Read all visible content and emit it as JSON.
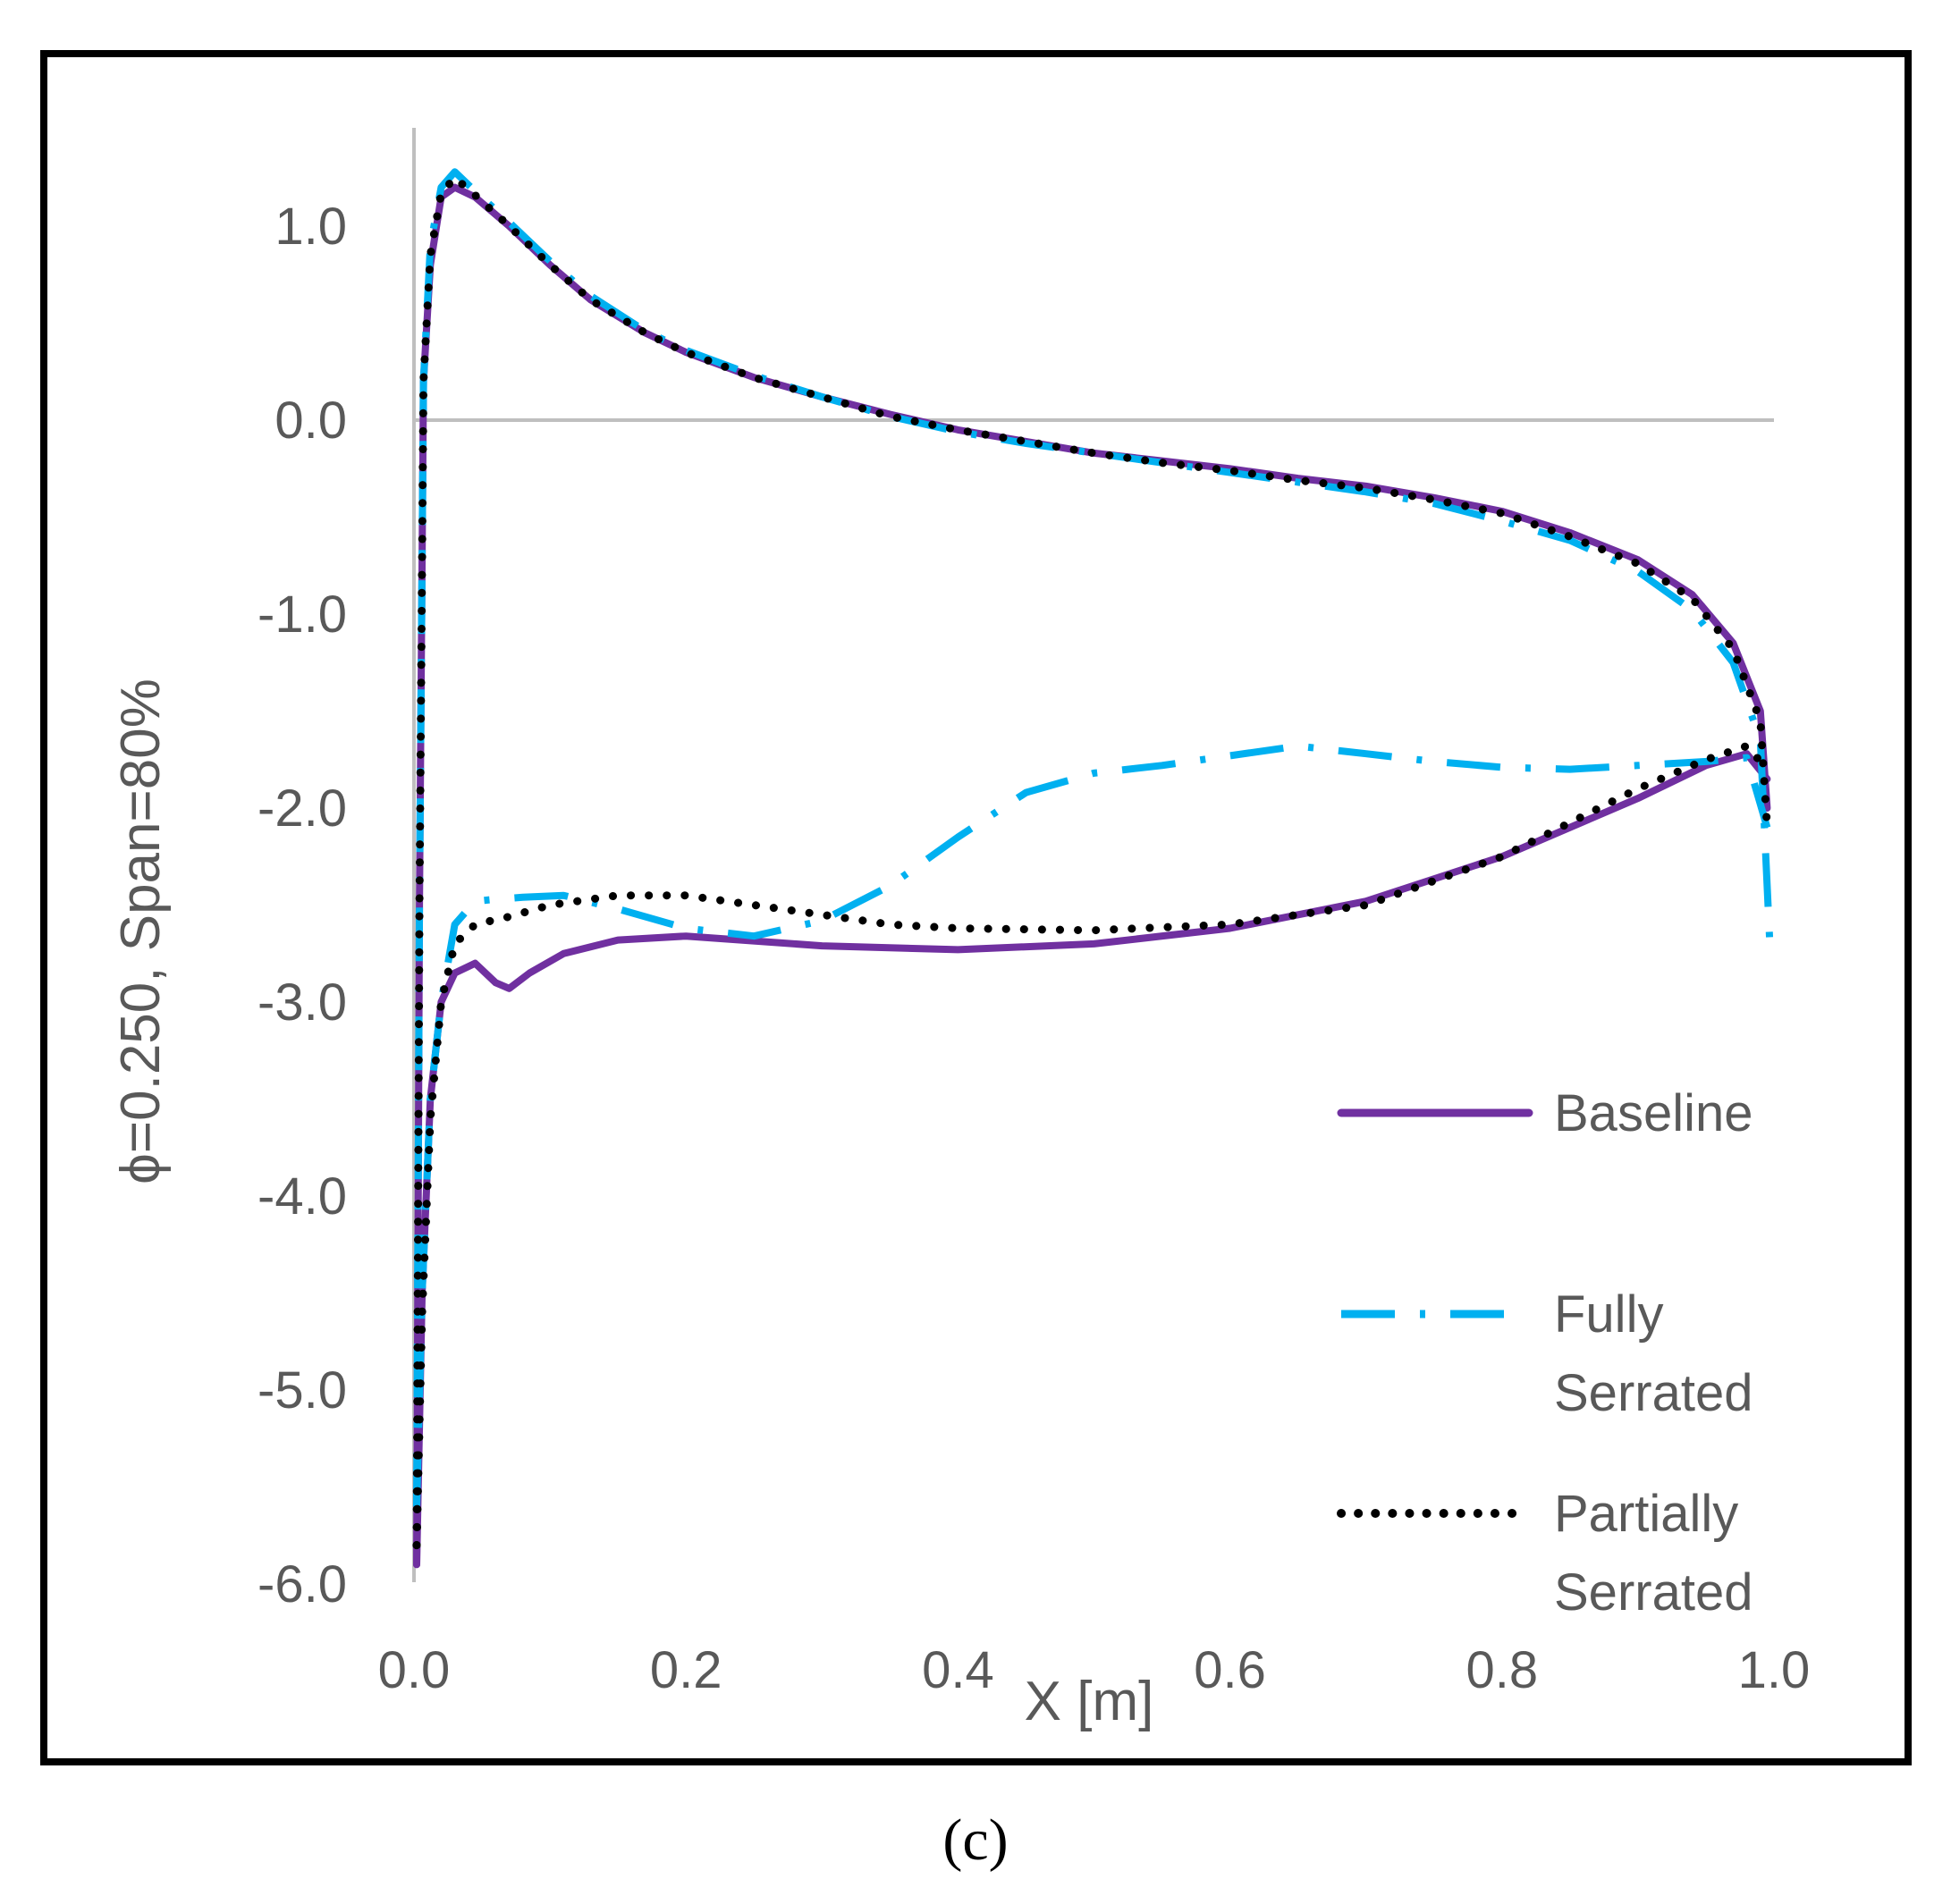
{
  "caption": "(c)",
  "chart_data": {
    "type": "line",
    "xlabel": "X [m]",
    "ylabel": "ϕ=0.250, Span=80%",
    "xlim": [
      0.0,
      1.0
    ],
    "ylim": [
      -6.0,
      1.5
    ],
    "x_ticks": [
      0.0,
      0.2,
      0.4,
      0.6,
      0.8,
      1.0
    ],
    "x_tick_labels": [
      "0.0",
      "0.2",
      "0.4",
      "0.6",
      "0.8",
      "1.0"
    ],
    "y_ticks": [
      1.0,
      0.0,
      -1.0,
      -2.0,
      -3.0,
      -4.0,
      -5.0,
      -6.0
    ],
    "y_tick_labels": [
      "1.0",
      "0.0",
      "-1.0",
      "-2.0",
      "-3.0",
      "-4.0",
      "-5.0",
      "-6.0"
    ],
    "grid": false,
    "legend_position": "lower-right",
    "series": [
      {
        "name": "Baseline",
        "legend_lines": [
          "Baseline"
        ],
        "color": "#7030A0",
        "style": "solid",
        "upper": [
          [
            0.002,
            -5.9
          ],
          [
            0.004,
            -2.5
          ],
          [
            0.007,
            0.2
          ],
          [
            0.012,
            0.8
          ],
          [
            0.02,
            1.15
          ],
          [
            0.03,
            1.2
          ],
          [
            0.045,
            1.15
          ],
          [
            0.07,
            1.0
          ],
          [
            0.1,
            0.8
          ],
          [
            0.13,
            0.62
          ],
          [
            0.17,
            0.45
          ],
          [
            0.2,
            0.35
          ],
          [
            0.25,
            0.22
          ],
          [
            0.3,
            0.12
          ],
          [
            0.35,
            0.03
          ],
          [
            0.4,
            -0.05
          ],
          [
            0.45,
            -0.11
          ],
          [
            0.5,
            -0.17
          ],
          [
            0.55,
            -0.21
          ],
          [
            0.6,
            -0.25
          ],
          [
            0.65,
            -0.3
          ],
          [
            0.7,
            -0.34
          ],
          [
            0.75,
            -0.4
          ],
          [
            0.8,
            -0.47
          ],
          [
            0.85,
            -0.58
          ],
          [
            0.9,
            -0.72
          ],
          [
            0.94,
            -0.9
          ],
          [
            0.97,
            -1.15
          ],
          [
            0.99,
            -1.5
          ],
          [
            0.995,
            -2.0
          ]
        ],
        "lower": [
          [
            0.002,
            -5.9
          ],
          [
            0.006,
            -4.5
          ],
          [
            0.012,
            -3.5
          ],
          [
            0.02,
            -3.0
          ],
          [
            0.03,
            -2.85
          ],
          [
            0.045,
            -2.8
          ],
          [
            0.06,
            -2.9
          ],
          [
            0.07,
            -2.93
          ],
          [
            0.085,
            -2.85
          ],
          [
            0.11,
            -2.75
          ],
          [
            0.15,
            -2.68
          ],
          [
            0.2,
            -2.66
          ],
          [
            0.3,
            -2.71
          ],
          [
            0.4,
            -2.73
          ],
          [
            0.5,
            -2.7
          ],
          [
            0.6,
            -2.62
          ],
          [
            0.7,
            -2.48
          ],
          [
            0.8,
            -2.25
          ],
          [
            0.9,
            -1.95
          ],
          [
            0.95,
            -1.78
          ],
          [
            0.98,
            -1.72
          ],
          [
            0.995,
            -1.85
          ]
        ]
      },
      {
        "name": "Fully Serrated",
        "legend_lines": [
          "Fully",
          "Serrated"
        ],
        "color": "#00B0F0",
        "style": "dashdot",
        "upper": [
          [
            0.002,
            -5.6
          ],
          [
            0.004,
            -2.5
          ],
          [
            0.007,
            0.2
          ],
          [
            0.012,
            0.9
          ],
          [
            0.02,
            1.2
          ],
          [
            0.03,
            1.28
          ],
          [
            0.045,
            1.18
          ],
          [
            0.07,
            1.02
          ],
          [
            0.1,
            0.82
          ],
          [
            0.13,
            0.64
          ],
          [
            0.17,
            0.46
          ],
          [
            0.2,
            0.36
          ],
          [
            0.25,
            0.23
          ],
          [
            0.3,
            0.12
          ],
          [
            0.35,
            0.02
          ],
          [
            0.4,
            -0.06
          ],
          [
            0.45,
            -0.12
          ],
          [
            0.5,
            -0.17
          ],
          [
            0.55,
            -0.22
          ],
          [
            0.6,
            -0.27
          ],
          [
            0.65,
            -0.32
          ],
          [
            0.7,
            -0.37
          ],
          [
            0.75,
            -0.43
          ],
          [
            0.8,
            -0.52
          ],
          [
            0.85,
            -0.62
          ],
          [
            0.9,
            -0.78
          ],
          [
            0.94,
            -0.98
          ],
          [
            0.97,
            -1.25
          ],
          [
            0.99,
            -1.65
          ],
          [
            0.997,
            -2.7
          ]
        ],
        "lower": [
          [
            0.002,
            -5.6
          ],
          [
            0.006,
            -4.5
          ],
          [
            0.012,
            -3.5
          ],
          [
            0.02,
            -3.0
          ],
          [
            0.03,
            -2.6
          ],
          [
            0.045,
            -2.48
          ],
          [
            0.06,
            -2.47
          ],
          [
            0.08,
            -2.46
          ],
          [
            0.11,
            -2.45
          ],
          [
            0.15,
            -2.52
          ],
          [
            0.2,
            -2.62
          ],
          [
            0.25,
            -2.66
          ],
          [
            0.3,
            -2.58
          ],
          [
            0.35,
            -2.4
          ],
          [
            0.4,
            -2.15
          ],
          [
            0.45,
            -1.92
          ],
          [
            0.5,
            -1.82
          ],
          [
            0.55,
            -1.78
          ],
          [
            0.6,
            -1.73
          ],
          [
            0.65,
            -1.68
          ],
          [
            0.7,
            -1.72
          ],
          [
            0.75,
            -1.76
          ],
          [
            0.8,
            -1.79
          ],
          [
            0.85,
            -1.8
          ],
          [
            0.9,
            -1.78
          ],
          [
            0.95,
            -1.76
          ],
          [
            0.98,
            -1.74
          ],
          [
            0.995,
            -2.1
          ]
        ]
      },
      {
        "name": "Partially Serrated",
        "legend_lines": [
          "Partially",
          "Serrated"
        ],
        "color": "#000000",
        "style": "dotted",
        "upper": [
          [
            0.002,
            -5.8
          ],
          [
            0.004,
            -2.5
          ],
          [
            0.007,
            0.2
          ],
          [
            0.012,
            0.85
          ],
          [
            0.02,
            1.17
          ],
          [
            0.03,
            1.25
          ],
          [
            0.045,
            1.16
          ],
          [
            0.07,
            1.0
          ],
          [
            0.1,
            0.8
          ],
          [
            0.13,
            0.62
          ],
          [
            0.17,
            0.45
          ],
          [
            0.2,
            0.35
          ],
          [
            0.25,
            0.22
          ],
          [
            0.3,
            0.12
          ],
          [
            0.35,
            0.02
          ],
          [
            0.4,
            -0.05
          ],
          [
            0.45,
            -0.11
          ],
          [
            0.5,
            -0.17
          ],
          [
            0.55,
            -0.22
          ],
          [
            0.6,
            -0.26
          ],
          [
            0.65,
            -0.31
          ],
          [
            0.7,
            -0.35
          ],
          [
            0.75,
            -0.41
          ],
          [
            0.8,
            -0.48
          ],
          [
            0.85,
            -0.6
          ],
          [
            0.9,
            -0.74
          ],
          [
            0.94,
            -0.92
          ],
          [
            0.97,
            -1.18
          ],
          [
            0.99,
            -1.55
          ],
          [
            0.995,
            -2.1
          ]
        ],
        "lower": [
          [
            0.002,
            -5.8
          ],
          [
            0.006,
            -4.6
          ],
          [
            0.012,
            -3.6
          ],
          [
            0.02,
            -3.0
          ],
          [
            0.03,
            -2.7
          ],
          [
            0.045,
            -2.6
          ],
          [
            0.07,
            -2.56
          ],
          [
            0.1,
            -2.5
          ],
          [
            0.15,
            -2.45
          ],
          [
            0.2,
            -2.45
          ],
          [
            0.25,
            -2.5
          ],
          [
            0.3,
            -2.55
          ],
          [
            0.35,
            -2.6
          ],
          [
            0.4,
            -2.62
          ],
          [
            0.5,
            -2.63
          ],
          [
            0.6,
            -2.6
          ],
          [
            0.7,
            -2.5
          ],
          [
            0.8,
            -2.25
          ],
          [
            0.9,
            -1.9
          ],
          [
            0.95,
            -1.75
          ],
          [
            0.98,
            -1.68
          ],
          [
            0.995,
            -1.8
          ]
        ]
      }
    ]
  }
}
